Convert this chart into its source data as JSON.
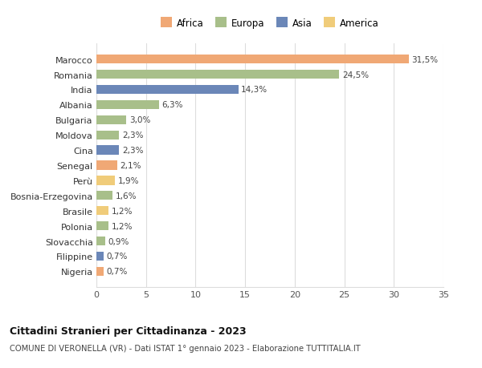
{
  "categories": [
    "Nigeria",
    "Filippine",
    "Slovacchia",
    "Polonia",
    "Brasile",
    "Bosnia-Erzegovina",
    "Perù",
    "Senegal",
    "Cina",
    "Moldova",
    "Bulgaria",
    "Albania",
    "India",
    "Romania",
    "Marocco"
  ],
  "values": [
    0.7,
    0.7,
    0.9,
    1.2,
    1.2,
    1.6,
    1.9,
    2.1,
    2.3,
    2.3,
    3.0,
    6.3,
    14.3,
    24.5,
    31.5
  ],
  "labels": [
    "0,7%",
    "0,7%",
    "0,9%",
    "1,2%",
    "1,2%",
    "1,6%",
    "1,9%",
    "2,1%",
    "2,3%",
    "2,3%",
    "3,0%",
    "6,3%",
    "14,3%",
    "24,5%",
    "31,5%"
  ],
  "continents": [
    "Africa",
    "Asia",
    "Europa",
    "Europa",
    "America",
    "Europa",
    "America",
    "Africa",
    "Asia",
    "Europa",
    "Europa",
    "Europa",
    "Asia",
    "Europa",
    "Africa"
  ],
  "colors": {
    "Africa": "#F0A875",
    "Europa": "#A8BF8A",
    "Asia": "#6B87B8",
    "America": "#F0CC7A"
  },
  "legend_order": [
    "Africa",
    "Europa",
    "Asia",
    "America"
  ],
  "title1": "Cittadini Stranieri per Cittadinanza - 2023",
  "title2": "COMUNE DI VERONELLA (VR) - Dati ISTAT 1° gennaio 2023 - Elaborazione TUTTITALIA.IT",
  "xlim": [
    0,
    35
  ],
  "xticks": [
    0,
    5,
    10,
    15,
    20,
    25,
    30,
    35
  ],
  "background_color": "#ffffff",
  "grid_color": "#dddddd"
}
